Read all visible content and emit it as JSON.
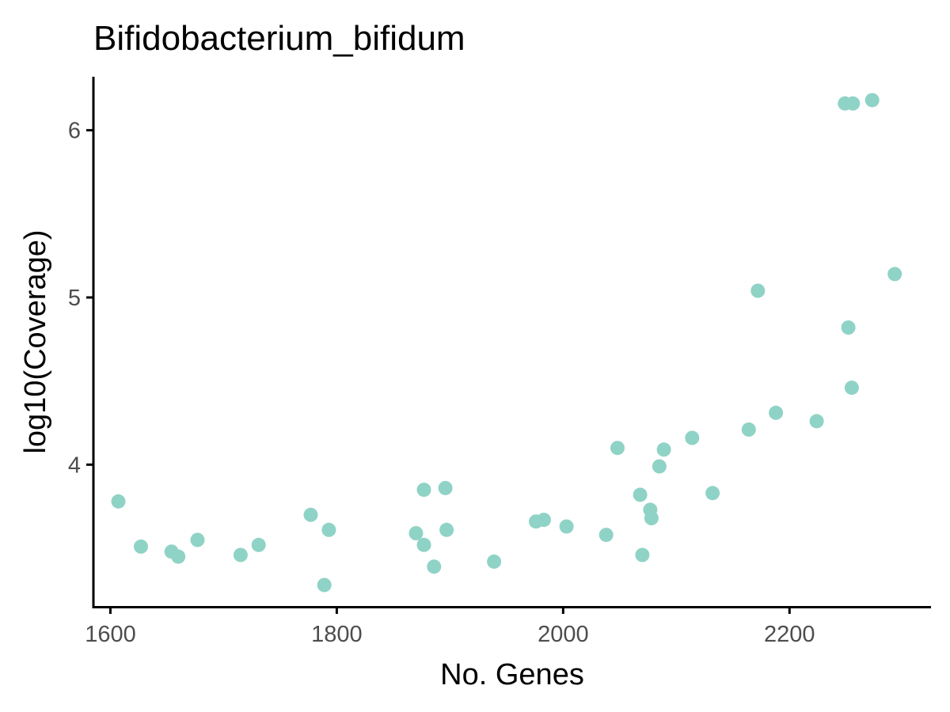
{
  "chart_data": {
    "type": "scatter",
    "title": "Bifidobacterium_bifidum",
    "xlabel": "No. Genes",
    "ylabel": "log10(Coverage)",
    "xlim": [
      1585,
      2325
    ],
    "ylim": [
      3.15,
      6.32
    ],
    "xticks": [
      1600,
      1800,
      2000,
      2200
    ],
    "yticks": [
      4,
      5,
      6
    ],
    "xtick_labels": [
      "1600",
      "1800",
      "2000",
      "2200"
    ],
    "ytick_labels": [
      "4",
      "5",
      "6"
    ],
    "point_color": "#8fd3c6",
    "grid": false,
    "legend": "none",
    "points": [
      {
        "x": 1607,
        "y": 3.78
      },
      {
        "x": 1627,
        "y": 3.51
      },
      {
        "x": 1654,
        "y": 3.48
      },
      {
        "x": 1660,
        "y": 3.45
      },
      {
        "x": 1677,
        "y": 3.55
      },
      {
        "x": 1715,
        "y": 3.46
      },
      {
        "x": 1731,
        "y": 3.52
      },
      {
        "x": 1777,
        "y": 3.7
      },
      {
        "x": 1789,
        "y": 3.28
      },
      {
        "x": 1793,
        "y": 3.61
      },
      {
        "x": 1870,
        "y": 3.59
      },
      {
        "x": 1877,
        "y": 3.52
      },
      {
        "x": 1877,
        "y": 3.85
      },
      {
        "x": 1886,
        "y": 3.39
      },
      {
        "x": 1896,
        "y": 3.86
      },
      {
        "x": 1897,
        "y": 3.61
      },
      {
        "x": 1939,
        "y": 3.42
      },
      {
        "x": 1976,
        "y": 3.66
      },
      {
        "x": 1983,
        "y": 3.67
      },
      {
        "x": 2003,
        "y": 3.63
      },
      {
        "x": 2038,
        "y": 3.58
      },
      {
        "x": 2048,
        "y": 4.1
      },
      {
        "x": 2068,
        "y": 3.82
      },
      {
        "x": 2070,
        "y": 3.46
      },
      {
        "x": 2077,
        "y": 3.73
      },
      {
        "x": 2078,
        "y": 3.68
      },
      {
        "x": 2085,
        "y": 3.99
      },
      {
        "x": 2089,
        "y": 4.09
      },
      {
        "x": 2114,
        "y": 4.16
      },
      {
        "x": 2132,
        "y": 3.83
      },
      {
        "x": 2164,
        "y": 4.21
      },
      {
        "x": 2172,
        "y": 5.04
      },
      {
        "x": 2188,
        "y": 4.31
      },
      {
        "x": 2224,
        "y": 4.26
      },
      {
        "x": 2249,
        "y": 6.16
      },
      {
        "x": 2252,
        "y": 4.82
      },
      {
        "x": 2255,
        "y": 4.46
      },
      {
        "x": 2256,
        "y": 6.16
      },
      {
        "x": 2273,
        "y": 6.18
      },
      {
        "x": 2293,
        "y": 5.14
      }
    ]
  }
}
